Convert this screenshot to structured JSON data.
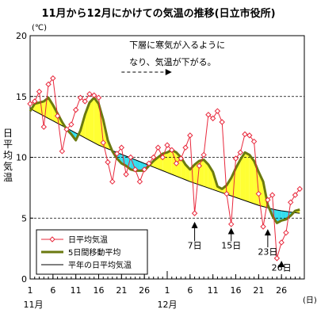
{
  "title": "11月から12月にかけての気温の推移(日立市役所)",
  "chart_data": {
    "type": "line",
    "title": "11月から12月にかけての気温の推移(日立市役所)",
    "ylabel": "日平均気温",
    "yunit": "(℃)",
    "xunit": "(日)",
    "ylim": [
      0,
      20
    ],
    "yticks": [
      0,
      5,
      10,
      15,
      20
    ],
    "xtick_labels": [
      "1",
      "6",
      "11",
      "16",
      "21",
      "26",
      "1",
      "6",
      "11",
      "16",
      "21",
      "26"
    ],
    "month_labels": [
      "11月",
      "12月"
    ],
    "grid": "horizontal dashed",
    "legend_position": "bottom-left",
    "x": [
      "11/1",
      "11/2",
      "11/3",
      "11/4",
      "11/5",
      "11/6",
      "11/7",
      "11/8",
      "11/9",
      "11/10",
      "11/11",
      "11/12",
      "11/13",
      "11/14",
      "11/15",
      "11/16",
      "11/17",
      "11/18",
      "11/19",
      "11/20",
      "11/21",
      "11/22",
      "11/23",
      "11/24",
      "11/25",
      "11/26",
      "11/27",
      "11/28",
      "11/29",
      "11/30",
      "12/1",
      "12/2",
      "12/3",
      "12/4",
      "12/5",
      "12/6",
      "12/7",
      "12/8",
      "12/9",
      "12/10",
      "12/11",
      "12/12",
      "12/13",
      "12/14",
      "12/15",
      "12/16",
      "12/17",
      "12/18",
      "12/19",
      "12/20",
      "12/21",
      "12/22",
      "12/23",
      "12/24",
      "12/25",
      "12/26",
      "12/27",
      "12/28",
      "12/29",
      "12/30"
    ],
    "series": [
      {
        "name": "日平均気温",
        "color": "#e8283c",
        "marker": "diamond-open",
        "values": [
          14.4,
          14.6,
          15.4,
          12.5,
          16.0,
          16.5,
          13.4,
          10.5,
          12.3,
          12.7,
          13.9,
          14.9,
          14.6,
          15.2,
          15.1,
          14.9,
          11.2,
          9.6,
          8.0,
          10.3,
          10.8,
          8.6,
          10.0,
          9.0,
          8.0,
          9.0,
          9.5,
          10.0,
          10.8,
          10.0,
          11.0,
          10.6,
          9.5,
          9.9,
          10.8,
          11.8,
          5.4,
          9.3,
          10.2,
          13.5,
          13.2,
          13.8,
          12.9,
          7.0,
          4.5,
          9.9,
          10.4,
          11.9,
          11.8,
          11.3,
          7.0,
          4.3,
          6.5,
          6.9,
          1.7,
          3.0,
          3.8,
          6.3,
          6.9,
          7.4
        ]
      },
      {
        "name": "5日間移動平均",
        "color": "#6b7a10",
        "values": [
          13.8,
          14.4,
          14.5,
          14.6,
          14.9,
          14.3,
          13.6,
          12.9,
          12.3,
          11.9,
          11.4,
          12.2,
          13.5,
          14.5,
          14.9,
          14.4,
          13.1,
          11.4,
          10.5,
          9.9,
          9.5,
          9.3,
          9.0,
          8.9,
          8.9,
          8.9,
          9.3,
          9.7,
          10.0,
          10.3,
          10.4,
          10.6,
          10.4,
          10.0,
          9.4,
          9.0,
          9.4,
          9.7,
          9.8,
          9.4,
          8.8,
          7.6,
          7.4,
          7.7,
          8.3,
          9.1,
          9.8,
          10.4,
          10.2,
          9.7,
          8.8,
          8.0,
          6.1,
          5.2,
          4.6,
          4.8,
          4.9,
          5.2,
          5.6,
          5.7
        ]
      },
      {
        "name": "平年の日平均気温",
        "color": "#000000",
        "values": [
          14.0,
          13.8,
          13.6,
          13.4,
          13.2,
          13.0,
          12.8,
          12.6,
          12.4,
          12.2,
          12.0,
          11.8,
          11.6,
          11.4,
          11.2,
          11.0,
          10.85,
          10.7,
          10.55,
          10.4,
          10.25,
          10.1,
          9.95,
          9.8,
          9.65,
          9.5,
          9.35,
          9.2,
          9.05,
          8.9,
          8.75,
          8.6,
          8.45,
          8.3,
          8.15,
          8.0,
          7.87,
          7.74,
          7.61,
          7.48,
          7.35,
          7.22,
          7.09,
          6.96,
          6.83,
          6.7,
          6.57,
          6.44,
          6.31,
          6.18,
          6.05,
          5.95,
          5.85,
          5.75,
          5.67,
          5.6,
          5.55,
          5.5,
          5.45,
          5.4
        ]
      }
    ],
    "fill_above_normal": "#ffff33",
    "fill_below_normal": "#33ddee",
    "annotations": [
      {
        "text": "下層に寒気が入るように",
        "x": "11/22",
        "y": 19.0
      },
      {
        "text": "なり、気温が下がる。",
        "x": "11/22",
        "y": 17.6
      },
      {
        "text": "7日",
        "x": "12/7",
        "y": 2.5
      },
      {
        "text": "15日",
        "x": "12/15",
        "y": 2.5
      },
      {
        "text": "23日",
        "x": "12/23",
        "y": 2.0
      },
      {
        "text": "26日",
        "x": "12/26",
        "y": 0.7
      }
    ],
    "arrow_annotations": [
      {
        "type": "horizontal",
        "from_x": "11/21",
        "to_x": "12/2",
        "y": 17.0
      },
      {
        "type": "up",
        "x": "12/7",
        "from_y": 3.1,
        "to_y": 4.7
      },
      {
        "type": "up",
        "x": "12/15",
        "from_y": 3.1,
        "to_y": 4.2
      },
      {
        "type": "up",
        "x": "12/23",
        "from_y": 2.6,
        "to_y": 4.1
      },
      {
        "type": "up",
        "x": "12/26",
        "from_y": 1.3,
        "to_y": 1.5
      }
    ]
  }
}
